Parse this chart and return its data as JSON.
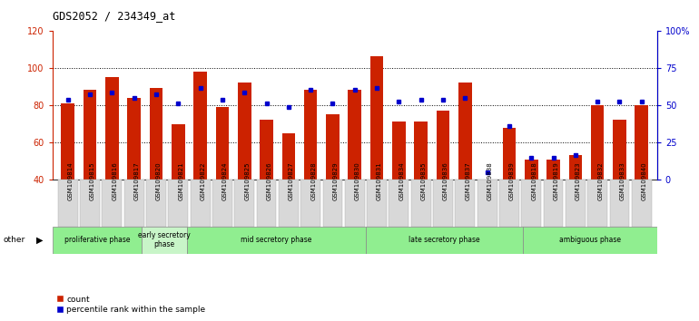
{
  "title": "GDS2052 / 234349_at",
  "samples": [
    "GSM109814",
    "GSM109815",
    "GSM109816",
    "GSM109817",
    "GSM109820",
    "GSM109821",
    "GSM109822",
    "GSM109824",
    "GSM109825",
    "GSM109826",
    "GSM109827",
    "GSM109828",
    "GSM109829",
    "GSM109830",
    "GSM109831",
    "GSM109834",
    "GSM109835",
    "GSM109836",
    "GSM109837",
    "GSM109838",
    "GSM109839",
    "GSM109818",
    "GSM109819",
    "GSM109823",
    "GSM109832",
    "GSM109833",
    "GSM109840"
  ],
  "red_values": [
    81,
    88,
    95,
    84,
    89,
    70,
    98,
    79,
    92,
    72,
    65,
    88,
    75,
    88,
    106,
    71,
    71,
    77,
    92,
    33,
    68,
    51,
    51,
    53,
    80,
    72,
    80
  ],
  "blue_values": [
    83,
    86,
    87,
    84,
    86,
    81,
    89,
    83,
    87,
    81,
    79,
    88,
    81,
    88,
    89,
    82,
    83,
    83,
    84,
    44,
    69,
    52,
    52,
    53,
    82,
    82,
    82
  ],
  "phases": [
    {
      "label": "proliferative phase",
      "start": 0,
      "end": 4,
      "color": "#90EE90"
    },
    {
      "label": "early secretory\nphase",
      "start": 4,
      "end": 6,
      "color": "#c8f5c8"
    },
    {
      "label": "mid secretory phase",
      "start": 6,
      "end": 14,
      "color": "#90EE90"
    },
    {
      "label": "late secretory phase",
      "start": 14,
      "end": 21,
      "color": "#90EE90"
    },
    {
      "label": "ambiguous phase",
      "start": 21,
      "end": 27,
      "color": "#90EE90"
    }
  ],
  "bar_color": "#cc2200",
  "dot_color": "#0000cc",
  "ylim_left": [
    40,
    120
  ],
  "ylim_right": [
    0,
    100
  ],
  "right_ticks": [
    0,
    25,
    50,
    75,
    100
  ],
  "right_tick_labels": [
    "0",
    "25",
    "50",
    "75",
    "100%"
  ],
  "left_ticks": [
    40,
    60,
    80,
    100,
    120
  ],
  "dotted_lines": [
    60,
    80,
    100
  ],
  "tick_bg_color": "#d8d8d8"
}
